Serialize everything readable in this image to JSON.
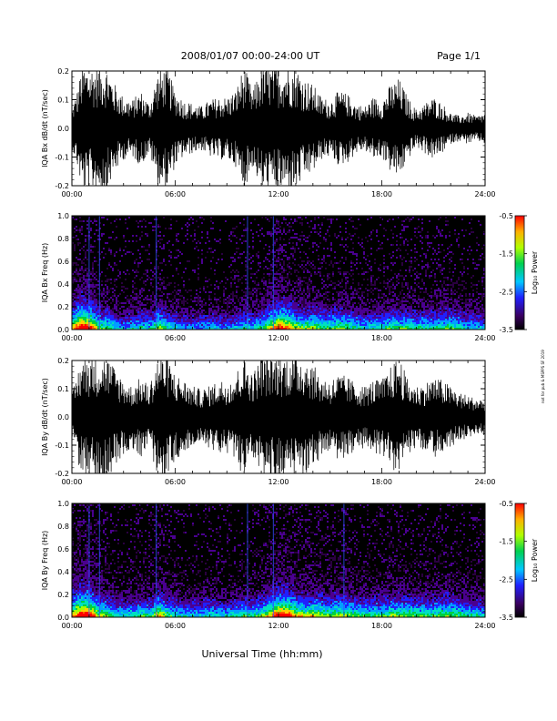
{
  "header": {
    "title": "2008/01/07  00:00-24:00 UT",
    "page": "Page 1/1"
  },
  "footer": {
    "xlabel": "Universal Time (hh:mm)"
  },
  "side_note": "not for pub & MSPPS SF 2019",
  "x_ticks": [
    "00:00",
    "06:00",
    "12:00",
    "18:00",
    "24:00"
  ],
  "colorbar": {
    "label": "Log₁₀ Power",
    "ticks": [
      "-0.5",
      "-1.5",
      "-2.5",
      "-3.5"
    ],
    "range": [
      -3.5,
      -0.5
    ]
  },
  "chart_data": [
    {
      "type": "line",
      "ylabel": "IQA Bx dB/dt (nT/sec)",
      "xlim": [
        0,
        24
      ],
      "ylim": [
        -0.2,
        0.2
      ],
      "y_ticks": [
        "0.2",
        "0.1",
        "0.0",
        "-0.1",
        "-0.2"
      ],
      "envelope": {
        "x": [
          0,
          0.3,
          0.6,
          0.9,
          1.2,
          1.5,
          2,
          2.5,
          3,
          3.5,
          4,
          4.5,
          5,
          5.5,
          6,
          6.5,
          7,
          7.5,
          8,
          8.5,
          9,
          9.5,
          10,
          10.5,
          11,
          11.5,
          12,
          12.5,
          13,
          13.5,
          14,
          14.5,
          15,
          15.5,
          16,
          16.5,
          17,
          17.5,
          18,
          18.5,
          19,
          19.5,
          20,
          20.5,
          21,
          21.5,
          22,
          22.5,
          23,
          23.5,
          24
        ],
        "amplitude": [
          0.06,
          0.12,
          0.2,
          0.2,
          0.2,
          0.2,
          0.2,
          0.14,
          0.1,
          0.09,
          0.12,
          0.08,
          0.18,
          0.2,
          0.12,
          0.09,
          0.08,
          0.07,
          0.09,
          0.1,
          0.1,
          0.12,
          0.2,
          0.12,
          0.2,
          0.2,
          0.2,
          0.2,
          0.2,
          0.16,
          0.14,
          0.1,
          0.09,
          0.12,
          0.11,
          0.08,
          0.07,
          0.1,
          0.09,
          0.14,
          0.16,
          0.1,
          0.06,
          0.08,
          0.1,
          0.08,
          0.05,
          0.04,
          0.05,
          0.04,
          0.05
        ]
      }
    },
    {
      "type": "heatmap",
      "ylabel": "IQA Bx Freq (Hz)",
      "xlim": [
        0,
        24
      ],
      "ylim": [
        0,
        1
      ],
      "y_ticks": [
        "1.0",
        "0.8",
        "0.6",
        "0.4",
        "0.2",
        "0.0"
      ],
      "colorbar_label": "Log₁₀ Power",
      "activity": {
        "x": [
          0,
          0.5,
          1,
          1.5,
          2,
          2.5,
          3,
          3.5,
          4,
          4.5,
          5,
          5.5,
          6,
          6.5,
          7,
          7.5,
          8,
          8.5,
          9,
          9.5,
          10,
          10.5,
          11,
          11.5,
          12,
          12.5,
          13,
          13.5,
          14,
          14.5,
          15,
          15.5,
          16,
          16.5,
          17,
          17.5,
          18,
          18.5,
          19,
          19.5,
          20,
          20.5,
          21,
          21.5,
          22,
          22.5,
          23,
          23.5,
          24
        ],
        "level": [
          0.6,
          0.9,
          0.8,
          0.5,
          0.45,
          0.35,
          0.3,
          0.35,
          0.4,
          0.35,
          0.55,
          0.4,
          0.35,
          0.3,
          0.3,
          0.3,
          0.35,
          0.3,
          0.3,
          0.35,
          0.4,
          0.35,
          0.45,
          0.6,
          0.8,
          0.7,
          0.55,
          0.5,
          0.55,
          0.45,
          0.45,
          0.5,
          0.45,
          0.4,
          0.35,
          0.4,
          0.4,
          0.45,
          0.45,
          0.45,
          0.4,
          0.4,
          0.4,
          0.45,
          0.45,
          0.4,
          0.35,
          0.35,
          0.3
        ]
      },
      "vertical_lines_hours": [
        1.0,
        1.6,
        4.9,
        10.2,
        11.7
      ]
    },
    {
      "type": "line",
      "ylabel": "IQA By dB/dt (nT/sec)",
      "xlim": [
        0,
        24
      ],
      "ylim": [
        -0.2,
        0.2
      ],
      "y_ticks": [
        "0.2",
        "0.1",
        "0.0",
        "-0.1",
        "-0.2"
      ],
      "envelope": {
        "x": [
          0,
          0.3,
          0.6,
          0.9,
          1.2,
          1.5,
          2,
          2.5,
          3,
          3.5,
          4,
          4.5,
          5,
          5.5,
          6,
          6.5,
          7,
          7.5,
          8,
          8.5,
          9,
          9.5,
          10,
          10.5,
          11,
          11.5,
          12,
          12.5,
          13,
          13.5,
          14,
          14.5,
          15,
          15.5,
          16,
          16.5,
          17,
          17.5,
          18,
          18.5,
          19,
          19.5,
          20,
          20.5,
          21,
          21.5,
          22,
          22.5,
          23,
          23.5,
          24
        ],
        "amplitude": [
          0.07,
          0.14,
          0.2,
          0.2,
          0.2,
          0.2,
          0.2,
          0.16,
          0.12,
          0.1,
          0.13,
          0.1,
          0.2,
          0.2,
          0.14,
          0.12,
          0.1,
          0.09,
          0.1,
          0.12,
          0.12,
          0.14,
          0.2,
          0.14,
          0.2,
          0.2,
          0.2,
          0.2,
          0.2,
          0.2,
          0.17,
          0.13,
          0.12,
          0.14,
          0.13,
          0.11,
          0.1,
          0.12,
          0.12,
          0.16,
          0.2,
          0.12,
          0.1,
          0.11,
          0.13,
          0.12,
          0.1,
          0.08,
          0.07,
          0.06,
          0.06
        ]
      }
    },
    {
      "type": "heatmap",
      "ylabel": "IQA By Freq (Hz)",
      "xlim": [
        0,
        24
      ],
      "ylim": [
        0,
        1
      ],
      "y_ticks": [
        "1.0",
        "0.8",
        "0.6",
        "0.4",
        "0.2",
        "0.0"
      ],
      "colorbar_label": "Log₁₀ Power",
      "activity": {
        "x": [
          0,
          0.5,
          1,
          1.5,
          2,
          2.5,
          3,
          3.5,
          4,
          4.5,
          5,
          5.5,
          6,
          6.5,
          7,
          7.5,
          8,
          8.5,
          9,
          9.5,
          10,
          10.5,
          11,
          11.5,
          12,
          12.5,
          13,
          13.5,
          14,
          14.5,
          15,
          15.5,
          16,
          16.5,
          17,
          17.5,
          18,
          18.5,
          19,
          19.5,
          20,
          20.5,
          21,
          21.5,
          22,
          22.5,
          23,
          23.5,
          24
        ],
        "level": [
          0.65,
          0.9,
          0.85,
          0.55,
          0.5,
          0.4,
          0.35,
          0.4,
          0.45,
          0.4,
          0.65,
          0.45,
          0.4,
          0.35,
          0.35,
          0.35,
          0.4,
          0.35,
          0.35,
          0.4,
          0.45,
          0.4,
          0.5,
          0.65,
          0.85,
          0.8,
          0.6,
          0.55,
          0.6,
          0.5,
          0.5,
          0.55,
          0.5,
          0.45,
          0.45,
          0.45,
          0.45,
          0.5,
          0.5,
          0.5,
          0.45,
          0.45,
          0.45,
          0.5,
          0.5,
          0.45,
          0.4,
          0.4,
          0.35
        ]
      },
      "vertical_lines_hours": [
        1.0,
        1.6,
        4.9,
        10.2,
        11.7,
        15.8
      ]
    }
  ]
}
